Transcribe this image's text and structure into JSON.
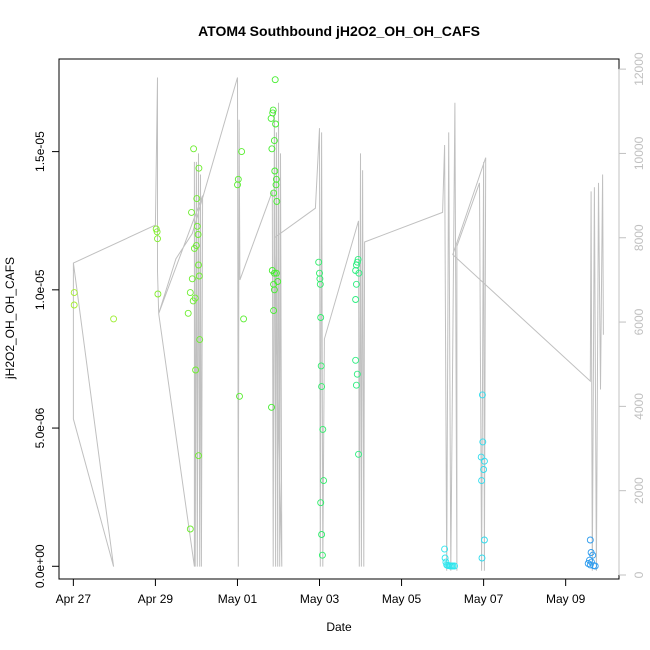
{
  "chart_data": {
    "type": "scatter",
    "title": "ATOM4 Southbound jH2O2_OH_OH_CAFS",
    "xlabel": "Date",
    "ylabel": "jH2O2_OH_OH_CAFS",
    "x_unit": "days since Apr 27",
    "xlim": [
      -0.35,
      13.3
    ],
    "ylim": [
      -4.6e-07,
      1.835e-05
    ],
    "y2lim": [
      -95,
      12240
    ],
    "x_ticks": [
      {
        "x": 0,
        "label": "Apr 27"
      },
      {
        "x": 2,
        "label": "Apr 29"
      },
      {
        "x": 4,
        "label": "May 01"
      },
      {
        "x": 6,
        "label": "May 03"
      },
      {
        "x": 8,
        "label": "May 05"
      },
      {
        "x": 10,
        "label": "May 07"
      },
      {
        "x": 12,
        "label": "May 09"
      }
    ],
    "y_ticks": [
      {
        "y": 0,
        "label": "0.0e+00"
      },
      {
        "y": 5e-06,
        "label": "5.0e-06"
      },
      {
        "y": 1e-05,
        "label": "1.0e-05"
      },
      {
        "y": 1.5e-05,
        "label": "1.5e-05"
      }
    ],
    "y2_ticks": [
      {
        "y": 0,
        "label": "0"
      },
      {
        "y": 2000,
        "label": "2000"
      },
      {
        "y": 4000,
        "label": "4000"
      },
      {
        "y": 6000,
        "label": "6000"
      },
      {
        "y": 8000,
        "label": "8000"
      },
      {
        "y": 10000,
        "label": "10000"
      },
      {
        "y": 12000,
        "label": "12000"
      }
    ],
    "altitude_line_color": "#c0c0c0",
    "altitude_series": [
      [
        0.0,
        7400
      ],
      [
        0.0,
        3700
      ],
      [
        0.98,
        200
      ],
      [
        0.0,
        7400
      ],
      [
        2.0,
        8300
      ],
      [
        2.05,
        11800
      ],
      [
        2.05,
        7200
      ],
      [
        2.08,
        6200
      ],
      [
        2.95,
        200
      ],
      [
        2.95,
        9800
      ],
      [
        2.97,
        200
      ],
      [
        3.0,
        9800
      ],
      [
        3.02,
        200
      ],
      [
        3.05,
        10000
      ],
      [
        3.08,
        200
      ],
      [
        3.1,
        9500
      ],
      [
        3.12,
        200
      ],
      [
        3.15,
        9000
      ],
      [
        2.08,
        6200
      ],
      [
        2.5,
        7500
      ],
      [
        2.9,
        8100
      ],
      [
        4.0,
        11800
      ],
      [
        4.02,
        200
      ],
      [
        4.04,
        10800
      ],
      [
        4.06,
        7000
      ],
      [
        4.06,
        7000
      ],
      [
        4.85,
        9100
      ],
      [
        4.85,
        9100
      ],
      [
        4.87,
        200
      ],
      [
        4.9,
        11000
      ],
      [
        4.93,
        200
      ],
      [
        4.95,
        10500
      ],
      [
        4.98,
        200
      ],
      [
        5.0,
        11200
      ],
      [
        5.03,
        200
      ],
      [
        5.05,
        10000
      ],
      [
        5.08,
        200
      ],
      [
        4.9,
        8000
      ],
      [
        5.9,
        8700
      ],
      [
        6.0,
        10600
      ],
      [
        6.02,
        200
      ],
      [
        6.05,
        10500
      ],
      [
        6.08,
        200
      ],
      [
        6.12,
        5600
      ],
      [
        6.12,
        5600
      ],
      [
        6.95,
        8400
      ],
      [
        6.95,
        8400
      ],
      [
        6.97,
        200
      ],
      [
        7.0,
        10000
      ],
      [
        7.02,
        200
      ],
      [
        7.05,
        9600
      ],
      [
        7.08,
        200
      ],
      [
        7.1,
        7900
      ],
      [
        7.1,
        7900
      ],
      [
        9.0,
        8600
      ],
      [
        9.0,
        8600
      ],
      [
        9.05,
        10200
      ],
      [
        9.1,
        100
      ],
      [
        9.15,
        10500
      ],
      [
        9.2,
        100
      ],
      [
        9.3,
        11200
      ],
      [
        9.35,
        100
      ],
      [
        9.35,
        7800
      ],
      [
        9.9,
        9300
      ],
      [
        9.9,
        9300
      ],
      [
        9.95,
        100
      ],
      [
        10.0,
        9800
      ],
      [
        10.02,
        100
      ],
      [
        10.05,
        9900
      ],
      [
        9.25,
        7600
      ],
      [
        12.6,
        4600
      ],
      [
        12.6,
        4600
      ],
      [
        12.62,
        9100
      ],
      [
        12.65,
        100
      ],
      [
        12.7,
        9200
      ],
      [
        12.75,
        100
      ],
      [
        12.8,
        9300
      ],
      [
        12.85,
        4400
      ],
      [
        12.9,
        9500
      ],
      [
        12.92,
        5700
      ]
    ],
    "series": [
      {
        "values": [
          {
            "x": 0.02,
            "y": 9.9e-06,
            "color": "#a4ee2e"
          },
          {
            "x": 0.02,
            "y": 9.45e-06,
            "color": "#a4ee2e"
          },
          {
            "x": 0.98,
            "y": 8.95e-06,
            "color": "#9cee2e"
          },
          {
            "x": 2.02,
            "y": 1.22e-05,
            "color": "#82ee2e"
          },
          {
            "x": 2.04,
            "y": 1.21e-05,
            "color": "#82ee2e"
          },
          {
            "x": 2.05,
            "y": 1.185e-05,
            "color": "#82ee2e"
          },
          {
            "x": 2.06,
            "y": 9.85e-06,
            "color": "#82ee2e"
          },
          {
            "x": 2.8,
            "y": 9.15e-06,
            "color": "#6cee2e"
          },
          {
            "x": 2.85,
            "y": 9.9e-06,
            "color": "#6cee2e"
          },
          {
            "x": 2.88,
            "y": 1.28e-05,
            "color": "#6cee2e"
          },
          {
            "x": 2.9,
            "y": 1.04e-05,
            "color": "#6cee2e"
          },
          {
            "x": 2.92,
            "y": 9.6e-06,
            "color": "#6cee2e"
          },
          {
            "x": 2.93,
            "y": 1.51e-05,
            "color": "#6cee2e"
          },
          {
            "x": 2.95,
            "y": 1.15e-05,
            "color": "#6cee2e"
          },
          {
            "x": 2.97,
            "y": 9.7e-06,
            "color": "#6cee2e"
          },
          {
            "x": 2.98,
            "y": 7.1e-06,
            "color": "#6cee2e"
          },
          {
            "x": 3.0,
            "y": 1.16e-05,
            "color": "#6cee2e"
          },
          {
            "x": 3.01,
            "y": 1.33e-05,
            "color": "#6cee2e"
          },
          {
            "x": 3.02,
            "y": 1.23e-05,
            "color": "#6cee2e"
          },
          {
            "x": 3.04,
            "y": 1.2e-05,
            "color": "#6cee2e"
          },
          {
            "x": 3.05,
            "y": 1.09e-05,
            "color": "#6cee2e"
          },
          {
            "x": 3.06,
            "y": 1.44e-05,
            "color": "#6cee2e"
          },
          {
            "x": 3.07,
            "y": 1.05e-05,
            "color": "#6cee2e"
          },
          {
            "x": 3.08,
            "y": 8.2e-06,
            "color": "#6cee2e"
          },
          {
            "x": 3.05,
            "y": 4e-06,
            "color": "#6cee2e"
          },
          {
            "x": 2.85,
            "y": 1.35e-06,
            "color": "#6cee2e"
          },
          {
            "x": 4.0,
            "y": 1.38e-05,
            "color": "#58ee2e"
          },
          {
            "x": 4.02,
            "y": 1.4e-05,
            "color": "#58ee2e"
          },
          {
            "x": 4.05,
            "y": 6.15e-06,
            "color": "#58ee2e"
          },
          {
            "x": 4.1,
            "y": 1.5e-05,
            "color": "#58ee2e"
          },
          {
            "x": 4.15,
            "y": 8.95e-06,
            "color": "#58ee2e"
          },
          {
            "x": 4.82,
            "y": 1.62e-05,
            "color": "#44ee2e"
          },
          {
            "x": 4.84,
            "y": 1.51e-05,
            "color": "#44ee2e"
          },
          {
            "x": 4.86,
            "y": 1.64e-05,
            "color": "#44ee2e"
          },
          {
            "x": 4.87,
            "y": 1.65e-05,
            "color": "#44ee2e"
          },
          {
            "x": 4.88,
            "y": 1.35e-05,
            "color": "#44ee2e"
          },
          {
            "x": 4.9,
            "y": 1.54e-05,
            "color": "#44ee2e"
          },
          {
            "x": 4.91,
            "y": 1.43e-05,
            "color": "#44ee2e"
          },
          {
            "x": 4.93,
            "y": 1.6e-05,
            "color": "#44ee2e"
          },
          {
            "x": 4.94,
            "y": 1.38e-05,
            "color": "#44ee2e"
          },
          {
            "x": 4.95,
            "y": 1.4e-05,
            "color": "#44ee2e"
          },
          {
            "x": 4.96,
            "y": 1.32e-05,
            "color": "#44ee2e"
          },
          {
            "x": 4.92,
            "y": 1.76e-05,
            "color": "#44ee2e"
          },
          {
            "x": 4.85,
            "y": 1.07e-05,
            "color": "#44ee2e"
          },
          {
            "x": 4.9,
            "y": 1.06e-05,
            "color": "#44ee2e"
          },
          {
            "x": 4.95,
            "y": 1.06e-05,
            "color": "#44ee2e"
          },
          {
            "x": 4.88,
            "y": 1.02e-05,
            "color": "#44ee2e"
          },
          {
            "x": 4.9,
            "y": 1e-05,
            "color": "#44ee2e"
          },
          {
            "x": 4.98,
            "y": 1.03e-05,
            "color": "#44ee2e"
          },
          {
            "x": 4.88,
            "y": 9.25e-06,
            "color": "#44ee2e"
          },
          {
            "x": 4.83,
            "y": 5.75e-06,
            "color": "#44ee2e"
          },
          {
            "x": 5.98,
            "y": 1.1e-05,
            "color": "#2eee6a"
          },
          {
            "x": 6.0,
            "y": 1.06e-05,
            "color": "#2eee6a"
          },
          {
            "x": 6.01,
            "y": 1.04e-05,
            "color": "#2eee6a"
          },
          {
            "x": 6.02,
            "y": 1.02e-05,
            "color": "#2eee6a"
          },
          {
            "x": 6.03,
            "y": 9e-06,
            "color": "#2eee6a"
          },
          {
            "x": 6.04,
            "y": 7.25e-06,
            "color": "#2eee6a"
          },
          {
            "x": 6.05,
            "y": 6.5e-06,
            "color": "#2eee6a"
          },
          {
            "x": 6.08,
            "y": 4.95e-06,
            "color": "#2eee6a"
          },
          {
            "x": 6.1,
            "y": 3.1e-06,
            "color": "#2eee6a"
          },
          {
            "x": 6.03,
            "y": 2.3e-06,
            "color": "#2eee6a"
          },
          {
            "x": 6.05,
            "y": 1.15e-06,
            "color": "#2eee6a"
          },
          {
            "x": 6.07,
            "y": 4e-07,
            "color": "#2eee6a"
          },
          {
            "x": 6.88,
            "y": 1.07e-05,
            "color": "#2eee80"
          },
          {
            "x": 6.9,
            "y": 1.09e-05,
            "color": "#2eee80"
          },
          {
            "x": 6.92,
            "y": 1.1e-05,
            "color": "#2eee80"
          },
          {
            "x": 6.94,
            "y": 1.11e-05,
            "color": "#2eee80"
          },
          {
            "x": 6.96,
            "y": 1.06e-05,
            "color": "#2eee80"
          },
          {
            "x": 6.9,
            "y": 1.02e-05,
            "color": "#2eee80"
          },
          {
            "x": 6.88,
            "y": 9.65e-06,
            "color": "#2eee80"
          },
          {
            "x": 6.88,
            "y": 7.45e-06,
            "color": "#2eee80"
          },
          {
            "x": 6.92,
            "y": 6.95e-06,
            "color": "#2eee80"
          },
          {
            "x": 6.9,
            "y": 6.55e-06,
            "color": "#2eee80"
          },
          {
            "x": 6.95,
            "y": 4.05e-06,
            "color": "#2eee80"
          },
          {
            "x": 9.05,
            "y": 6.2e-07,
            "color": "#2ee6ee"
          },
          {
            "x": 9.06,
            "y": 3e-07,
            "color": "#2ee6ee"
          },
          {
            "x": 9.08,
            "y": 1.5e-07,
            "color": "#2ee6ee"
          },
          {
            "x": 9.1,
            "y": 5e-08,
            "color": "#2ee6ee"
          },
          {
            "x": 9.13,
            "y": 3e-08,
            "color": "#2ee6ee"
          },
          {
            "x": 9.16,
            "y": 2e-08,
            "color": "#2ee6ee"
          },
          {
            "x": 9.19,
            "y": 1e-08,
            "color": "#2ee6ee"
          },
          {
            "x": 9.22,
            "y": 1e-08,
            "color": "#2ee6ee"
          },
          {
            "x": 9.25,
            "y": 1e-08,
            "color": "#2ee6ee"
          },
          {
            "x": 9.29,
            "y": 1e-08,
            "color": "#2ee6ee"
          },
          {
            "x": 9.97,
            "y": 6.2e-06,
            "color": "#2edcee"
          },
          {
            "x": 9.98,
            "y": 4.5e-06,
            "color": "#2edcee"
          },
          {
            "x": 9.94,
            "y": 3.95e-06,
            "color": "#2edcee"
          },
          {
            "x": 10.02,
            "y": 3.8e-06,
            "color": "#2edcee"
          },
          {
            "x": 10.0,
            "y": 3.5e-06,
            "color": "#2edcee"
          },
          {
            "x": 9.95,
            "y": 3.1e-06,
            "color": "#2edcee"
          },
          {
            "x": 10.02,
            "y": 9.5e-07,
            "color": "#2edcee"
          },
          {
            "x": 9.96,
            "y": 3e-07,
            "color": "#2edcee"
          },
          {
            "x": 12.6,
            "y": 9.5e-07,
            "color": "#2e9cee"
          },
          {
            "x": 12.62,
            "y": 5e-07,
            "color": "#2e9cee"
          },
          {
            "x": 12.66,
            "y": 4e-07,
            "color": "#2e9cee"
          },
          {
            "x": 12.58,
            "y": 2.2e-07,
            "color": "#2e9cee"
          },
          {
            "x": 12.63,
            "y": 1.5e-07,
            "color": "#2e9cee"
          },
          {
            "x": 12.55,
            "y": 1e-07,
            "color": "#2e9cee"
          },
          {
            "x": 12.6,
            "y": 5e-08,
            "color": "#2e9cee"
          },
          {
            "x": 12.68,
            "y": 2e-08,
            "color": "#2e9cee"
          },
          {
            "x": 12.72,
            "y": 1e-08,
            "color": "#2e9cee"
          }
        ]
      }
    ]
  }
}
